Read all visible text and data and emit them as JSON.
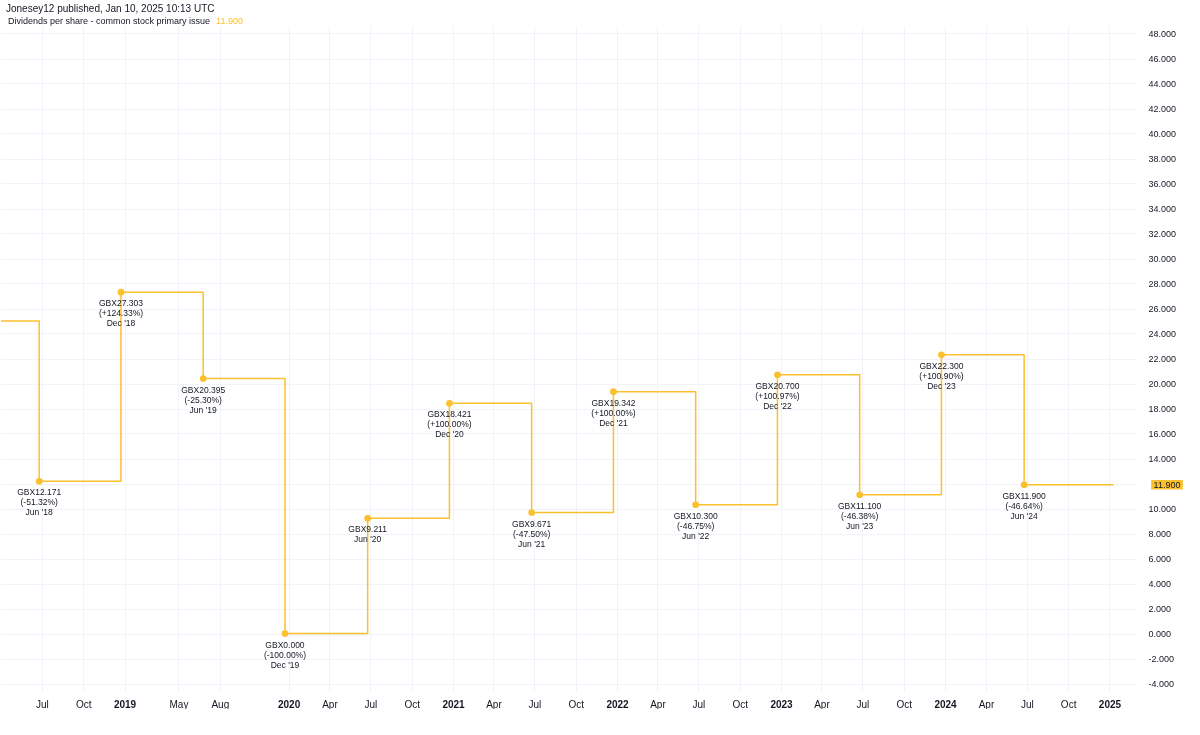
{
  "chart_data": {
    "type": "step",
    "title": "Dividends per share - common stock primary issue",
    "subtitle": "11.900",
    "annotations": [
      "Jonesey12 published, Jan 10, 2025 10:13 UTC",
      "11.900"
    ],
    "series": [
      {
        "type": "step",
        "color": "#fbc02d",
        "marker": "none",
        "x": [
          "2018-04-01",
          "2018-06-25",
          "2018-12-24",
          "2019-06-25",
          "2019-12-24",
          "2020-06-25",
          "2020-12-24",
          "2021-06-25",
          "2021-12-24",
          "2022-06-25",
          "2022-12-24",
          "2023-06-25",
          "2023-12-24",
          "2024-06-25",
          "2025-01-10"
        ],
        "values": [
          25.0,
          12.171,
          27.303,
          20.395,
          0.0,
          9.211,
          18.421,
          9.671,
          19.342,
          10.3,
          20.7,
          11.1,
          22.3,
          11.9,
          11.9
        ]
      },
      {
        "type": "scatter",
        "color": "#fbc02d",
        "marker": "circle",
        "x": [
          "2018-06-25",
          "2018-12-24",
          "2019-06-25",
          "2019-12-24",
          "2020-06-25",
          "2020-12-24",
          "2021-06-25",
          "2021-12-24",
          "2022-06-25",
          "2022-12-24",
          "2023-06-25",
          "2023-12-24",
          "2024-06-25"
        ],
        "values": [
          12.171,
          27.303,
          20.395,
          0.0,
          9.211,
          18.421,
          9.671,
          19.342,
          10.3,
          20.7,
          11.1,
          22.3,
          11.9
        ],
        "value_labels": [
          "GBX12.171\n(-51.32%)\nJun '18",
          "GBX27.303\n(+124.33%)\nDec '18",
          "GBX20.395\n(-25.30%)\nJun '19",
          "GBX0.000\n(-100.00%)\nDec '19",
          "GBX9.211\nJun '20",
          "GBX18.421\n(+100.00%)\nDec '20",
          "GBX9.671\n(-47.50%)\nJun '21",
          "GBX19.342\n(+100.00%)\nDec '21",
          "GBX10.300\n(-46.75%)\nJun '22",
          "GBX20.700\n(+100.97%)\nDec '22",
          "GBX11.100\n(-46.38%)\nJun '23",
          "GBX22.300\n(+100.90%)\nDec '23",
          "GBX11.900\n(-46.64%)\nJun '24"
        ]
      }
    ],
    "xlim": [
      "2018-04-01",
      "2025-03-01"
    ],
    "xticks": [
      {
        "value": "2018-07-01",
        "label": "Jul"
      },
      {
        "value": "2018-10-01",
        "label": "Oct"
      },
      {
        "value": "2019-01-01",
        "label": "2019"
      },
      {
        "value": "2019-05-01",
        "label": "May"
      },
      {
        "value": "2019-08-01",
        "label": "Aug"
      },
      {
        "value": "2020-01-01",
        "label": "2020"
      },
      {
        "value": "2020-04-01",
        "label": "Apr"
      },
      {
        "value": "2020-07-01",
        "label": "Jul"
      },
      {
        "value": "2020-10-01",
        "label": "Oct"
      },
      {
        "value": "2021-01-01",
        "label": "2021"
      },
      {
        "value": "2021-04-01",
        "label": "Apr"
      },
      {
        "value": "2021-07-01",
        "label": "Jul"
      },
      {
        "value": "2021-10-01",
        "label": "Oct"
      },
      {
        "value": "2022-01-01",
        "label": "2022"
      },
      {
        "value": "2022-04-01",
        "label": "Apr"
      },
      {
        "value": "2022-07-01",
        "label": "Jul"
      },
      {
        "value": "2022-10-01",
        "label": "Oct"
      },
      {
        "value": "2023-01-01",
        "label": "2023"
      },
      {
        "value": "2023-04-01",
        "label": "Apr"
      },
      {
        "value": "2023-07-01",
        "label": "Jul"
      },
      {
        "value": "2023-10-01",
        "label": "Oct"
      },
      {
        "value": "2024-01-01",
        "label": "2024"
      },
      {
        "value": "2024-04-01",
        "label": "Apr"
      },
      {
        "value": "2024-07-01",
        "label": "Jul"
      },
      {
        "value": "2024-10-01",
        "label": "Oct"
      },
      {
        "value": "2025-01-01",
        "label": "2025"
      }
    ],
    "ylim": [
      -4.6,
      48.6
    ],
    "yticks": [
      {
        "value": -4,
        "label": "-4.000"
      },
      {
        "value": -2,
        "label": "-2.000"
      },
      {
        "value": 0,
        "label": "0.000"
      },
      {
        "value": 2,
        "label": "2.000"
      },
      {
        "value": 4,
        "label": "4.000"
      },
      {
        "value": 6,
        "label": "6.000"
      },
      {
        "value": 8,
        "label": "8.000"
      },
      {
        "value": 10,
        "label": "10.000"
      },
      {
        "value": 12,
        "label": null
      },
      {
        "value": 14,
        "label": "14.000"
      },
      {
        "value": 16,
        "label": "16.000"
      },
      {
        "value": 18,
        "label": "18.000"
      },
      {
        "value": 20,
        "label": "20.000"
      },
      {
        "value": 22,
        "label": "22.000"
      },
      {
        "value": 24,
        "label": "24.000"
      },
      {
        "value": 26,
        "label": "26.000"
      },
      {
        "value": 28,
        "label": "28.000"
      },
      {
        "value": 30,
        "label": "30.000"
      },
      {
        "value": 32,
        "label": "32.000"
      },
      {
        "value": 34,
        "label": "34.000"
      },
      {
        "value": 36,
        "label": "36.000"
      },
      {
        "value": 38,
        "label": "38.000"
      },
      {
        "value": 40,
        "label": "40.000"
      },
      {
        "value": 42,
        "label": "42.000"
      },
      {
        "value": 44,
        "label": "44.000"
      },
      {
        "value": 46,
        "label": "46.000"
      },
      {
        "value": 48,
        "label": "48.000"
      }
    ],
    "grid": true
  }
}
